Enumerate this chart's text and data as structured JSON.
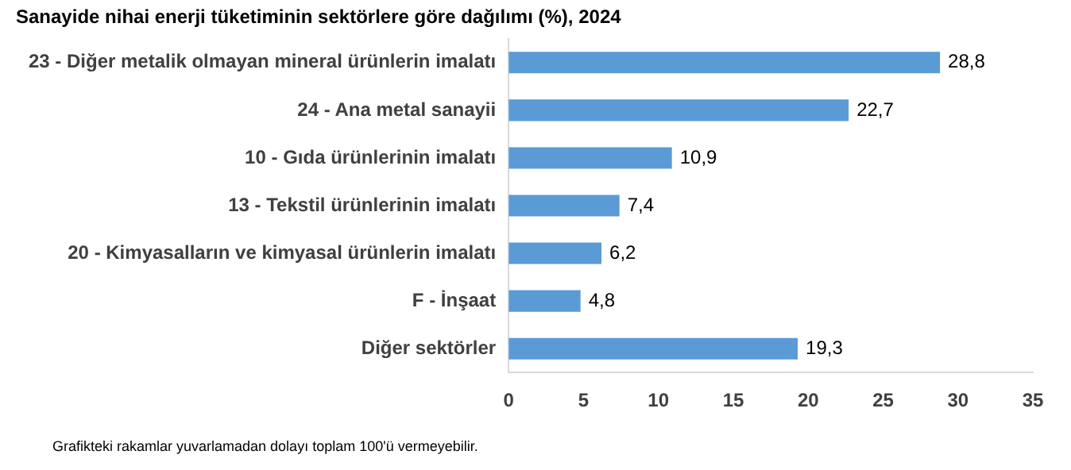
{
  "chart_data": {
    "type": "bar",
    "orientation": "horizontal",
    "title": "Sanayide nihai enerji tüketiminin sektörlere göre dağılımı (%), 2024",
    "categories": [
      "23 - Diğer metalik olmayan mineral ürünlerin imalatı",
      "24 - Ana metal sanayii",
      "10 - Gıda ürünlerinin imalatı",
      "13 - Tekstil ürünlerinin imalatı",
      "20 - Kimyasalların ve kimyasal ürünlerin imalatı",
      "F - İnşaat",
      "Diğer sektörler"
    ],
    "values": [
      28.8,
      22.7,
      10.9,
      7.4,
      6.2,
      4.8,
      19.3
    ],
    "value_labels": [
      "28,8",
      "22,7",
      "10,9",
      "7,4",
      "6,2",
      "4,8",
      "19,3"
    ],
    "color": "#5b9bd5",
    "xlim": [
      0,
      35
    ],
    "xticks": [
      0,
      5,
      10,
      15,
      20,
      25,
      30,
      35
    ],
    "grid": false,
    "legend": false,
    "annotations": [
      "Grafikteki rakamlar yuvarlamadan dolayı toplam 100'ü vermeyebilir."
    ]
  }
}
